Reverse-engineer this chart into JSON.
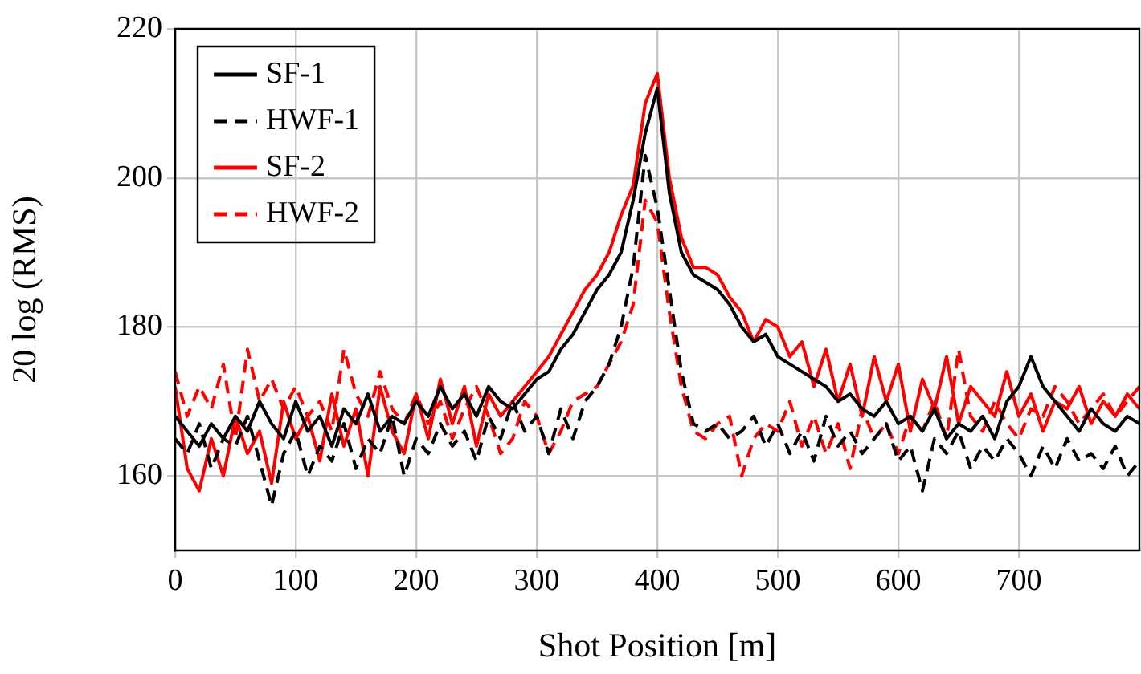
{
  "chart_data": {
    "type": "line",
    "xlabel": "Shot Position [m]",
    "ylabel": "20 log (RMS)",
    "x": [
      0,
      10,
      20,
      30,
      40,
      50,
      60,
      70,
      80,
      90,
      100,
      110,
      120,
      130,
      140,
      150,
      160,
      170,
      180,
      190,
      200,
      210,
      220,
      230,
      240,
      250,
      260,
      270,
      280,
      290,
      300,
      310,
      320,
      330,
      340,
      350,
      360,
      370,
      380,
      390,
      400,
      410,
      420,
      430,
      440,
      450,
      460,
      470,
      480,
      490,
      500,
      510,
      520,
      530,
      540,
      550,
      560,
      570,
      580,
      590,
      600,
      610,
      620,
      630,
      640,
      650,
      660,
      670,
      680,
      690,
      700,
      710,
      720,
      730,
      740,
      750,
      760,
      770,
      780,
      790,
      800
    ],
    "series": [
      {
        "name": "SF-1",
        "color": "#000000",
        "line_style": "solid",
        "values": [
          168,
          166,
          164,
          167,
          165,
          168,
          166,
          170,
          167,
          165,
          170,
          166,
          168,
          164,
          169,
          167,
          171,
          166,
          168,
          167,
          170,
          168,
          172,
          169,
          171,
          168,
          172,
          170,
          169,
          171,
          173,
          174,
          177,
          179,
          182,
          185,
          187,
          190,
          197,
          206,
          212,
          198,
          190,
          187,
          186,
          185,
          183,
          180,
          178,
          179,
          176,
          175,
          174,
          173,
          172,
          170,
          171,
          169,
          168,
          170,
          167,
          168,
          166,
          169,
          165,
          167,
          166,
          168,
          165,
          170,
          172,
          176,
          172,
          170,
          168,
          166,
          169,
          167,
          166,
          168,
          167
        ]
      },
      {
        "name": "HWF-1",
        "color": "#000000",
        "line_style": "dashed",
        "values": [
          165,
          163,
          167,
          161,
          165,
          164,
          168,
          162,
          156,
          163,
          166,
          160,
          164,
          162,
          167,
          161,
          165,
          163,
          168,
          160,
          165,
          163,
          167,
          164,
          166,
          162,
          168,
          165,
          170,
          166,
          168,
          163,
          169,
          165,
          170,
          172,
          175,
          180,
          188,
          203,
          196,
          185,
          174,
          167,
          166,
          167,
          165,
          166,
          168,
          164,
          167,
          163,
          166,
          162,
          168,
          164,
          166,
          163,
          165,
          167,
          162,
          164,
          158,
          165,
          163,
          166,
          161,
          164,
          162,
          165,
          163,
          160,
          164,
          161,
          165,
          162,
          163,
          161,
          164,
          160,
          162
        ]
      },
      {
        "name": "SF-2",
        "color": "#ff0000",
        "line_style": "solid",
        "values": [
          172,
          161,
          158,
          165,
          160,
          168,
          163,
          166,
          159,
          170,
          165,
          168,
          162,
          171,
          164,
          169,
          160,
          172,
          166,
          163,
          171,
          165,
          173,
          167,
          172,
          164,
          171,
          168,
          170,
          172,
          174,
          176,
          179,
          182,
          185,
          187,
          190,
          195,
          199,
          210,
          214,
          200,
          192,
          188,
          188,
          187,
          184,
          182,
          178,
          181,
          180,
          176,
          178,
          172,
          177,
          170,
          175,
          168,
          176,
          170,
          175,
          166,
          173,
          169,
          176,
          167,
          172,
          170,
          168,
          174,
          168,
          171,
          166,
          170,
          169,
          172,
          167,
          170,
          168,
          171,
          169
        ]
      },
      {
        "name": "HWF-2",
        "color": "#ff0000",
        "line_style": "dashed",
        "values": [
          174,
          168,
          172,
          169,
          175,
          165,
          177,
          170,
          173,
          169,
          172,
          168,
          170,
          166,
          177,
          171,
          168,
          174,
          169,
          167,
          171,
          167,
          170,
          165,
          169,
          172,
          168,
          163,
          165,
          170,
          168,
          163,
          166,
          170,
          171,
          172,
          175,
          178,
          183,
          197,
          194,
          182,
          172,
          166,
          165,
          167,
          168,
          160,
          165,
          167,
          166,
          170,
          164,
          168,
          163,
          167,
          161,
          169,
          165,
          167,
          163,
          168,
          166,
          170,
          165,
          177,
          168,
          166,
          170,
          167,
          165,
          169,
          168,
          172,
          170,
          167,
          169,
          171,
          168,
          170,
          172
        ]
      }
    ],
    "xlim": [
      0,
      800
    ],
    "xticks": [
      0,
      100,
      200,
      300,
      400,
      500,
      600,
      700
    ],
    "ylim": [
      150,
      220
    ],
    "yticks": [
      160,
      180,
      200,
      220
    ],
    "grid": true,
    "legend": "top left",
    "marker": "none"
  }
}
